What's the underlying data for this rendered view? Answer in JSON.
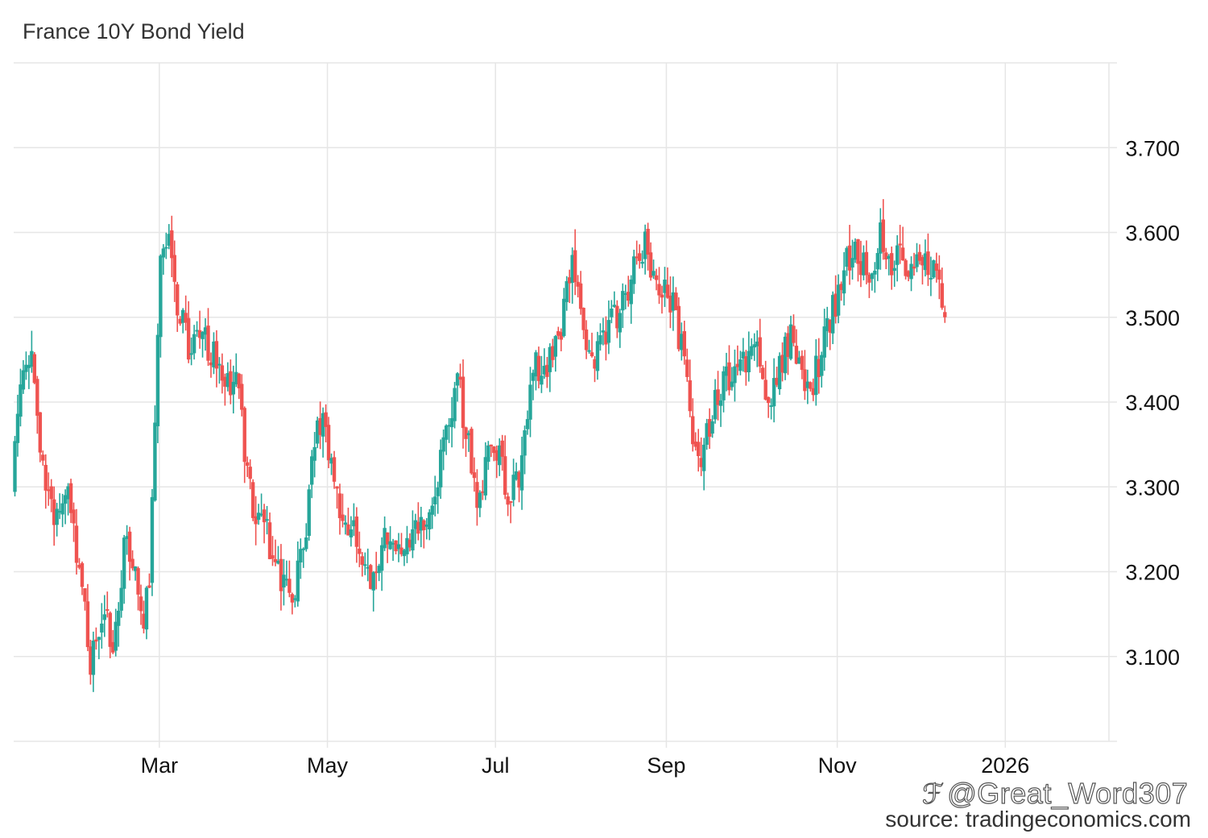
{
  "title": "France 10Y Bond Yield",
  "source_text": "source: tradingeconomics.com",
  "watermark_text": "@Great_Word307",
  "colors": {
    "up": "#26a69a",
    "down": "#ef5350",
    "grid": "#e6e6e6",
    "axis_text": "#111111"
  },
  "chart_data": {
    "type": "candlestick",
    "title": "France 10Y Bond Yield",
    "xlabel": "",
    "ylabel": "",
    "x_tick_labels": [
      "Mar",
      "May",
      "Jul",
      "Sep",
      "Nov",
      "2026"
    ],
    "y_tick_labels": [
      "3.100",
      "3.200",
      "3.300",
      "3.400",
      "3.500",
      "3.600",
      "3.700"
    ],
    "ylim": [
      3.0,
      3.8
    ],
    "y_axis_side": "right",
    "grid": true,
    "legend": "none",
    "anchors": [
      {
        "d": 0,
        "v": 3.3
      },
      {
        "d": 8,
        "v": 3.45
      },
      {
        "d": 14,
        "v": 3.46
      },
      {
        "d": 21,
        "v": 3.33
      },
      {
        "d": 30,
        "v": 3.27
      },
      {
        "d": 40,
        "v": 3.28
      },
      {
        "d": 50,
        "v": 3.2
      },
      {
        "d": 56,
        "v": 3.08
      },
      {
        "d": 64,
        "v": 3.16
      },
      {
        "d": 72,
        "v": 3.11
      },
      {
        "d": 80,
        "v": 3.23
      },
      {
        "d": 88,
        "v": 3.19
      },
      {
        "d": 94,
        "v": 3.12
      },
      {
        "d": 99,
        "v": 3.22
      },
      {
        "d": 102,
        "v": 3.36
      },
      {
        "d": 106,
        "v": 3.57
      },
      {
        "d": 112,
        "v": 3.58
      },
      {
        "d": 120,
        "v": 3.5
      },
      {
        "d": 128,
        "v": 3.46
      },
      {
        "d": 140,
        "v": 3.47
      },
      {
        "d": 152,
        "v": 3.41
      },
      {
        "d": 160,
        "v": 3.45
      },
      {
        "d": 166,
        "v": 3.35
      },
      {
        "d": 172,
        "v": 3.28
      },
      {
        "d": 180,
        "v": 3.25
      },
      {
        "d": 190,
        "v": 3.2
      },
      {
        "d": 200,
        "v": 3.17
      },
      {
        "d": 210,
        "v": 3.25
      },
      {
        "d": 218,
        "v": 3.38
      },
      {
        "d": 226,
        "v": 3.35
      },
      {
        "d": 234,
        "v": 3.28
      },
      {
        "d": 244,
        "v": 3.25
      },
      {
        "d": 254,
        "v": 3.19
      },
      {
        "d": 266,
        "v": 3.24
      },
      {
        "d": 276,
        "v": 3.22
      },
      {
        "d": 290,
        "v": 3.25
      },
      {
        "d": 300,
        "v": 3.28
      },
      {
        "d": 310,
        "v": 3.35
      },
      {
        "d": 318,
        "v": 3.43
      },
      {
        "d": 326,
        "v": 3.35
      },
      {
        "d": 332,
        "v": 3.26
      },
      {
        "d": 340,
        "v": 3.36
      },
      {
        "d": 348,
        "v": 3.33
      },
      {
        "d": 356,
        "v": 3.29
      },
      {
        "d": 364,
        "v": 3.32
      },
      {
        "d": 372,
        "v": 3.44
      },
      {
        "d": 382,
        "v": 3.45
      },
      {
        "d": 392,
        "v": 3.48
      },
      {
        "d": 400,
        "v": 3.58
      },
      {
        "d": 408,
        "v": 3.48
      },
      {
        "d": 416,
        "v": 3.46
      },
      {
        "d": 424,
        "v": 3.48
      },
      {
        "d": 432,
        "v": 3.5
      },
      {
        "d": 442,
        "v": 3.55
      },
      {
        "d": 452,
        "v": 3.58
      },
      {
        "d": 462,
        "v": 3.53
      },
      {
        "d": 470,
        "v": 3.52
      },
      {
        "d": 478,
        "v": 3.47
      },
      {
        "d": 486,
        "v": 3.36
      },
      {
        "d": 492,
        "v": 3.34
      },
      {
        "d": 502,
        "v": 3.4
      },
      {
        "d": 512,
        "v": 3.43
      },
      {
        "d": 522,
        "v": 3.44
      },
      {
        "d": 532,
        "v": 3.47
      },
      {
        "d": 540,
        "v": 3.4
      },
      {
        "d": 548,
        "v": 3.45
      },
      {
        "d": 556,
        "v": 3.47
      },
      {
        "d": 564,
        "v": 3.42
      },
      {
        "d": 572,
        "v": 3.42
      },
      {
        "d": 580,
        "v": 3.48
      },
      {
        "d": 588,
        "v": 3.52
      },
      {
        "d": 596,
        "v": 3.57
      },
      {
        "d": 604,
        "v": 3.58
      },
      {
        "d": 612,
        "v": 3.54
      },
      {
        "d": 620,
        "v": 3.6
      },
      {
        "d": 628,
        "v": 3.57
      },
      {
        "d": 636,
        "v": 3.56
      },
      {
        "d": 642,
        "v": 3.55
      },
      {
        "d": 650,
        "v": 3.58
      },
      {
        "d": 658,
        "v": 3.56
      },
      {
        "d": 664,
        "v": 3.51
      }
    ],
    "note_units": "d is a time index over the visible period; v is the yield (%)"
  },
  "x_ticks": [
    {
      "label": "Mar",
      "d": 104
    },
    {
      "label": "May",
      "d": 224
    },
    {
      "label": "Jul",
      "d": 344
    },
    {
      "label": "Sep",
      "d": 466
    },
    {
      "label": "Nov",
      "d": 588
    },
    {
      "label": "2026",
      "d": 708
    }
  ]
}
